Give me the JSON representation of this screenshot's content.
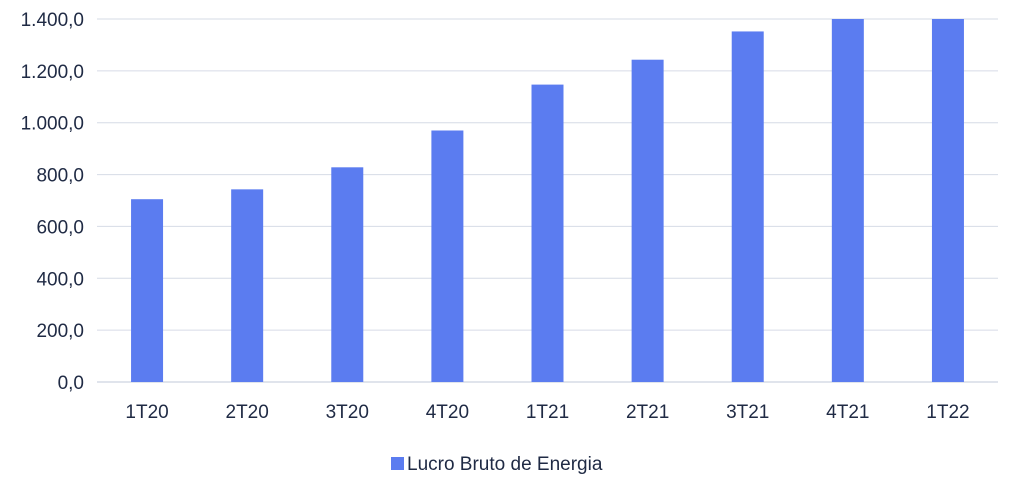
{
  "chart_data": {
    "type": "bar",
    "title": "",
    "xlabel": "",
    "ylabel": "",
    "categories": [
      "1T20",
      "2T20",
      "3T20",
      "4T20",
      "1T21",
      "2T21",
      "3T21",
      "4T21",
      "1T22"
    ],
    "series": [
      {
        "name": "Lucro Bruto de Energia",
        "values": [
          705,
          743,
          828,
          970,
          1147,
          1243,
          1352,
          1400,
          1400
        ],
        "color": "#5b7cf0"
      }
    ],
    "ylim": [
      0,
      1400
    ],
    "yticks": [
      0,
      200,
      400,
      600,
      800,
      1000,
      1200,
      1400
    ],
    "ytick_labels": [
      "0,0",
      "200,0",
      "400,0",
      "600,0",
      "800,0",
      "1.000,0",
      "1.200,0",
      "1.400,0"
    ],
    "grid": true,
    "gridline_color": "#d6dbe6",
    "legend_position": "bottom-center"
  }
}
